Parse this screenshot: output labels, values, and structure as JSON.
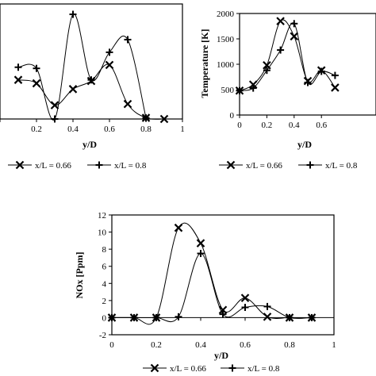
{
  "chart_data": [
    {
      "type": "line",
      "xlabel": "y/D",
      "ylabel": "",
      "xlim": [
        0,
        1
      ],
      "x_ticks": [
        "",
        "0.2",
        "0.4",
        "0.6",
        "0.8",
        "1"
      ],
      "ylim": [
        0,
        1
      ],
      "y_ticks": [],
      "series": [
        {
          "name": "x/L = 0.66",
          "marker": "x",
          "x": [
            0.1,
            0.2,
            0.3,
            0.4,
            0.5,
            0.6,
            0.7,
            0.8,
            0.9
          ],
          "y": [
            0.34,
            0.31,
            0.12,
            0.26,
            0.33,
            0.47,
            0.13,
            0.01,
            0.0
          ]
        },
        {
          "name": "x/L = 0.8",
          "marker": "+",
          "x": [
            0.1,
            0.2,
            0.3,
            0.4,
            0.5,
            0.6,
            0.7,
            0.8
          ],
          "y": [
            0.45,
            0.44,
            0.0,
            0.91,
            0.34,
            0.58,
            0.69,
            0.01
          ]
        }
      ],
      "legend": "bottom"
    },
    {
      "type": "line",
      "xlabel": "y/D",
      "ylabel": "Temperature [K]",
      "xlim": [
        0,
        1
      ],
      "x_ticks": [
        "0",
        "0.2",
        "0.4",
        "0.6"
      ],
      "ylim": [
        0,
        2000
      ],
      "y_ticks": [
        "0",
        "500",
        "1000",
        "1500",
        "2000"
      ],
      "series": [
        {
          "name": "x/L = 0.66",
          "marker": "x",
          "x": [
            0,
            0.1,
            0.2,
            0.3,
            0.4,
            0.5,
            0.6,
            0.7
          ],
          "y": [
            480,
            600,
            980,
            1850,
            1550,
            670,
            880,
            540
          ]
        },
        {
          "name": "x/L = 0.8",
          "marker": "+",
          "x": [
            0,
            0.1,
            0.2,
            0.3,
            0.4,
            0.5,
            0.6,
            0.7
          ],
          "y": [
            480,
            530,
            880,
            1280,
            1800,
            640,
            860,
            780
          ]
        }
      ],
      "legend": "bottom"
    },
    {
      "type": "line",
      "xlabel": "y/D",
      "ylabel": "NOx [Ppm]",
      "xlim": [
        0,
        1
      ],
      "x_ticks": [
        "0",
        "0.2",
        "0.4",
        "0.6",
        "0.8",
        "1"
      ],
      "ylim": [
        -2,
        12
      ],
      "y_ticks": [
        "-2",
        "0",
        "2",
        "4",
        "6",
        "8",
        "10",
        "12"
      ],
      "series": [
        {
          "name": "x/L = 0.66",
          "marker": "x",
          "x": [
            0,
            0.1,
            0.2,
            0.3,
            0.4,
            0.5,
            0.6,
            0.7,
            0.8,
            0.9
          ],
          "y": [
            0,
            0,
            0,
            10.5,
            8.7,
            0.9,
            2.3,
            0.1,
            0,
            0
          ]
        },
        {
          "name": "x/L = 0.8",
          "marker": "+",
          "x": [
            0,
            0.1,
            0.2,
            0.3,
            0.4,
            0.5,
            0.6,
            0.7,
            0.8,
            0.9
          ],
          "y": [
            0,
            0,
            0,
            0.1,
            7.5,
            0.4,
            1.2,
            1.3,
            0,
            0
          ]
        }
      ],
      "legend": "bottom"
    }
  ]
}
